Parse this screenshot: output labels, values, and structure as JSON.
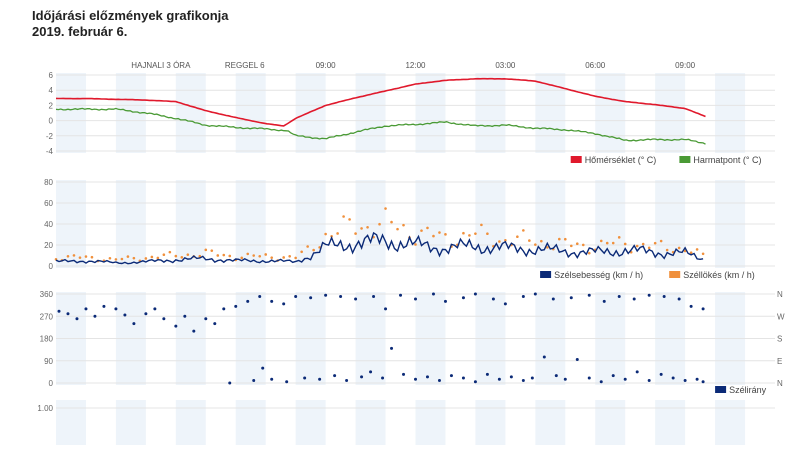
{
  "header": {
    "title": "Időjárási előzmények grafikonja",
    "date": "2019. február 6."
  },
  "colors": {
    "temperature": "#e0192c",
    "dewpoint": "#4a9a35",
    "wind_speed": "#0b2a77",
    "wind_gust": "#f0903c",
    "wind_dir": "#0b2a77",
    "band": "#eef4fa",
    "grid": "#e4e4e4"
  },
  "chart_data": [
    {
      "type": "line",
      "title": "Hőmérséklet / Harmatpont",
      "x_unit": "hour",
      "xlim": [
        0,
        24
      ],
      "time_labels": [
        {
          "hour": 3.5,
          "label": "HAJNALI 3 ÓRA"
        },
        {
          "hour": 6.3,
          "label": "REGGEL 6"
        },
        {
          "hour": 9,
          "label": "09:00"
        },
        {
          "hour": 12,
          "label": "12:00"
        },
        {
          "hour": 15,
          "label": "03:00"
        },
        {
          "hour": 18,
          "label": "06:00"
        },
        {
          "hour": 21,
          "label": "09:00"
        }
      ],
      "ylim": [
        -4,
        6
      ],
      "yticks": [
        "6",
        "4",
        "2",
        "0",
        "-2",
        "-4"
      ],
      "legend": "bottom-right",
      "series": [
        {
          "name": "Hőmérséklet (° C)",
          "x": [
            0,
            1,
            2,
            3,
            4,
            5,
            6,
            7,
            7.6,
            8,
            9,
            10,
            11,
            12,
            13,
            14,
            15,
            16,
            17,
            18,
            19,
            20,
            21,
            21.7
          ],
          "values": [
            2.9,
            2.9,
            2.8,
            2.7,
            2.5,
            1.3,
            0.4,
            -0.4,
            -0.7,
            0.3,
            2.0,
            3.0,
            3.9,
            4.8,
            5.3,
            5.5,
            5.5,
            5.2,
            4.2,
            3.2,
            2.5,
            2.1,
            1.6,
            0.5
          ]
        },
        {
          "name": "Harmatpont (° C)",
          "x": [
            0,
            1,
            2,
            3,
            4,
            5,
            6,
            7,
            7.7,
            8,
            9,
            10,
            11,
            12,
            13,
            14,
            15,
            16,
            17,
            18,
            19,
            20,
            21,
            21.7
          ],
          "values": [
            1.5,
            1.5,
            1.5,
            1.0,
            0.3,
            -0.6,
            -0.9,
            -1.1,
            -1.3,
            -2.0,
            -2.4,
            -1.5,
            -0.7,
            -0.5,
            -0.2,
            -0.7,
            -0.6,
            -1.0,
            -1.2,
            -1.7,
            -2.6,
            -2.5,
            -2.5,
            -3.0
          ]
        }
      ]
    },
    {
      "type": "line",
      "title": "Szél",
      "xlim": [
        0,
        24
      ],
      "ylim": [
        0,
        80
      ],
      "yticks": [
        "80",
        "60",
        "40",
        "20",
        "0"
      ],
      "legend": "bottom-right",
      "series": [
        {
          "name": "Szélsebesség (km / h)",
          "x": [
            0,
            1,
            2,
            3,
            4,
            5,
            6,
            7,
            8,
            8.5,
            9,
            10,
            11,
            12,
            13,
            14,
            15,
            16,
            17,
            18,
            19,
            20,
            21,
            21.7
          ],
          "values": [
            4,
            5,
            3,
            4,
            6,
            7,
            5,
            5,
            4,
            10,
            18,
            22,
            24,
            20,
            17,
            19,
            17,
            16,
            14,
            13,
            15,
            13,
            12,
            6
          ]
        },
        {
          "name": "Széllökés (km / h)",
          "x": [
            0,
            1,
            2,
            3,
            4,
            5,
            6,
            7,
            8,
            8.5,
            9,
            10,
            11,
            12,
            13,
            14,
            15,
            16,
            17,
            18,
            19,
            20,
            21,
            21.7
          ],
          "values": [
            8,
            8,
            6,
            8,
            10,
            12,
            9,
            9,
            8,
            16,
            30,
            38,
            40,
            32,
            26,
            30,
            25,
            24,
            20,
            19,
            22,
            18,
            17,
            8
          ]
        }
      ]
    },
    {
      "type": "scatter",
      "title": "Szélirány",
      "xlim": [
        0,
        24
      ],
      "ylim": [
        0,
        360
      ],
      "yticks": [
        "360",
        "270",
        "180",
        "90",
        "0"
      ],
      "yticks_right": [
        "N",
        "W",
        "S",
        "E",
        "N"
      ],
      "legend": "bottom-right",
      "series": [
        {
          "name": "Szélirány",
          "points": [
            [
              0.1,
              290
            ],
            [
              0.4,
              280
            ],
            [
              0.7,
              260
            ],
            [
              1,
              300
            ],
            [
              1.3,
              270
            ],
            [
              1.6,
              310
            ],
            [
              2,
              300
            ],
            [
              2.3,
              275
            ],
            [
              2.6,
              240
            ],
            [
              3,
              280
            ],
            [
              3.3,
              300
            ],
            [
              3.6,
              260
            ],
            [
              4,
              230
            ],
            [
              4.3,
              270
            ],
            [
              4.6,
              210
            ],
            [
              5,
              260
            ],
            [
              5.3,
              240
            ],
            [
              5.6,
              300
            ],
            [
              6,
              310
            ],
            [
              6.4,
              330
            ],
            [
              6.8,
              350
            ],
            [
              7.2,
              330
            ],
            [
              7.6,
              320
            ],
            [
              8,
              350
            ],
            [
              8.5,
              345
            ],
            [
              9,
              355
            ],
            [
              9.5,
              350
            ],
            [
              10,
              340
            ],
            [
              10.6,
              350
            ],
            [
              11,
              300
            ],
            [
              11.5,
              355
            ],
            [
              12,
              340
            ],
            [
              12.6,
              360
            ],
            [
              13,
              330
            ],
            [
              13.6,
              345
            ],
            [
              14,
              360
            ],
            [
              14.6,
              340
            ],
            [
              15,
              320
            ],
            [
              15.6,
              350
            ],
            [
              16,
              360
            ],
            [
              16.6,
              340
            ],
            [
              17.2,
              345
            ],
            [
              17.8,
              355
            ],
            [
              18.3,
              330
            ],
            [
              18.8,
              350
            ],
            [
              19.3,
              340
            ],
            [
              19.8,
              355
            ],
            [
              20.3,
              350
            ],
            [
              20.8,
              340
            ],
            [
              21.2,
              310
            ],
            [
              21.6,
              300
            ],
            [
              5.8,
              0
            ],
            [
              6.6,
              10
            ],
            [
              6.9,
              60
            ],
            [
              7.2,
              15
            ],
            [
              7.7,
              5
            ],
            [
              8.3,
              20
            ],
            [
              8.8,
              15
            ],
            [
              9.3,
              30
            ],
            [
              9.7,
              10
            ],
            [
              10.2,
              25
            ],
            [
              10.5,
              45
            ],
            [
              10.9,
              20
            ],
            [
              11.2,
              140
            ],
            [
              11.6,
              35
            ],
            [
              12,
              15
            ],
            [
              12.4,
              25
            ],
            [
              12.8,
              10
            ],
            [
              13.2,
              30
            ],
            [
              13.6,
              20
            ],
            [
              14,
              5
            ],
            [
              14.4,
              35
            ],
            [
              14.8,
              15
            ],
            [
              15.2,
              25
            ],
            [
              15.6,
              10
            ],
            [
              15.9,
              20
            ],
            [
              16.3,
              105
            ],
            [
              16.7,
              30
            ],
            [
              17,
              15
            ],
            [
              17.4,
              95
            ],
            [
              17.8,
              20
            ],
            [
              18.2,
              5
            ],
            [
              18.6,
              30
            ],
            [
              19,
              15
            ],
            [
              19.4,
              45
            ],
            [
              19.8,
              10
            ],
            [
              20.2,
              35
            ],
            [
              20.6,
              20
            ],
            [
              21,
              10
            ],
            [
              21.4,
              15
            ],
            [
              21.6,
              5
            ]
          ]
        }
      ]
    },
    {
      "type": "line",
      "title": "",
      "xlim": [
        0,
        24
      ],
      "yticks": [
        "1.00"
      ],
      "series": []
    }
  ]
}
